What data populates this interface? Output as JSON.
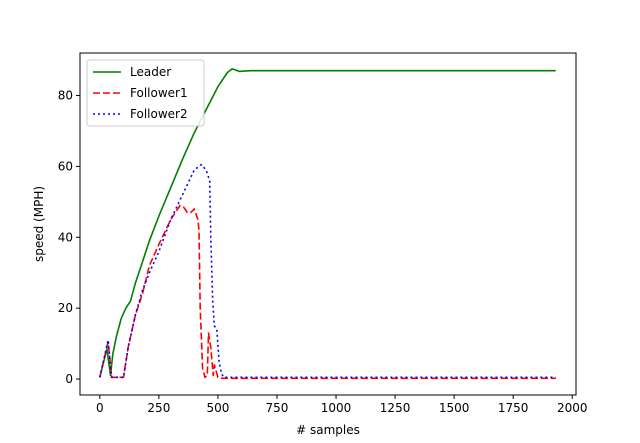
{
  "chart_data": {
    "type": "line",
    "title": "",
    "xlabel": "# samples",
    "ylabel": "speed (MPH)",
    "xlim": [
      -84,
      2016
    ],
    "ylim": [
      -4.5,
      92
    ],
    "xticks": [
      0,
      250,
      500,
      750,
      1000,
      1250,
      1500,
      1750,
      2000
    ],
    "yticks": [
      0,
      20,
      40,
      60,
      80
    ],
    "grid": false,
    "legend_position": "top-left",
    "series": [
      {
        "name": "Leader",
        "color": "#008000",
        "linestyle": "solid",
        "x": [
          0,
          30,
          45,
          55,
          70,
          90,
          110,
          130,
          150,
          180,
          210,
          250,
          300,
          350,
          400,
          450,
          500,
          540,
          560,
          575,
          590,
          610,
          640,
          700,
          800,
          1000,
          1250,
          1500,
          1750,
          1930
        ],
        "y": [
          0.5,
          8.5,
          1,
          7,
          12,
          17,
          20,
          22,
          27,
          33,
          39,
          46,
          54,
          62,
          69.5,
          76,
          82.5,
          86.5,
          87.5,
          87.2,
          86.8,
          86.9,
          87,
          87,
          87,
          87,
          87,
          87,
          87,
          87
        ]
      },
      {
        "name": "Follower1",
        "color": "#ff0000",
        "linestyle": "dashed",
        "x": [
          0,
          35,
          50,
          80,
          100,
          120,
          150,
          180,
          210,
          250,
          300,
          340,
          355,
          370,
          385,
          400,
          415,
          420,
          425,
          435,
          445,
          455,
          460,
          470,
          480,
          485,
          500,
          520,
          550,
          600,
          800,
          1000,
          1250,
          1500,
          1750,
          1930
        ],
        "y": [
          0.5,
          10.5,
          0.5,
          0.5,
          0.5,
          9,
          18,
          24,
          32,
          38,
          45,
          49,
          48.5,
          47,
          47,
          48,
          45,
          42,
          20,
          3,
          0.5,
          1,
          13,
          9,
          1,
          4,
          0.5,
          0.2,
          0.2,
          0.2,
          0.2,
          0.2,
          0.2,
          0.2,
          0.2,
          0.2
        ]
      },
      {
        "name": "Follower2",
        "color": "#0000ff",
        "linestyle": "dotted",
        "x": [
          0,
          35,
          50,
          80,
          100,
          120,
          150,
          180,
          210,
          250,
          300,
          350,
          400,
          430,
          450,
          465,
          470,
          478,
          485,
          495,
          505,
          515,
          525,
          545,
          600,
          800,
          1000,
          1250,
          1500,
          1750,
          1930
        ],
        "y": [
          0.5,
          11,
          0.5,
          0.5,
          0.5,
          9,
          18,
          25,
          30,
          36,
          45,
          52,
          59,
          60.5,
          59,
          56,
          40,
          22,
          15,
          14,
          5,
          1.5,
          0.5,
          0.5,
          0.5,
          0.5,
          0.5,
          0.5,
          0.5,
          0.5,
          0.5
        ]
      }
    ]
  }
}
